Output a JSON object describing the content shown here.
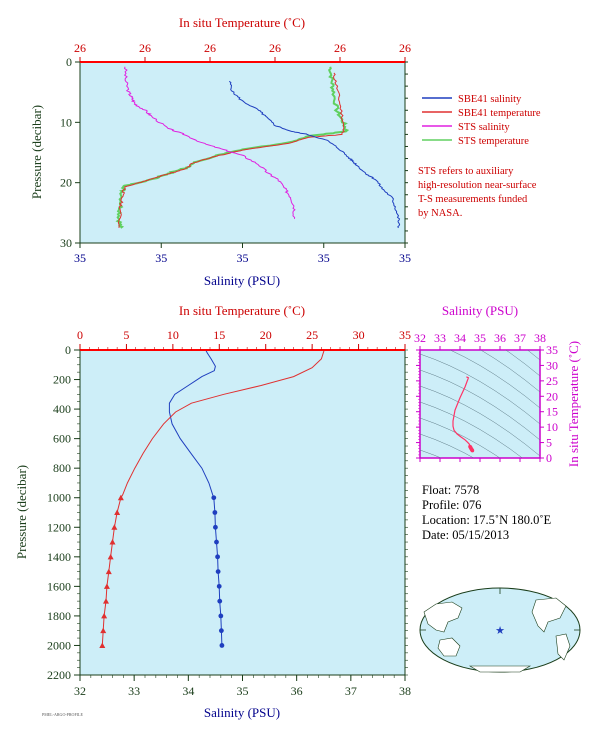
{
  "chart_data": [
    {
      "id": "top",
      "type": "line",
      "title": "In situ Temperature (˚C)",
      "xlabel": "Salinity (PSU)",
      "ylabel": "Pressure (decibar)",
      "x_tick_labels": [
        "35",
        "35",
        "35",
        "35",
        "35"
      ],
      "top_tick_labels": [
        "26",
        "26",
        "26",
        "26",
        "26",
        "26"
      ],
      "y_ticks": [
        0,
        10,
        20,
        30
      ],
      "ylim": [
        0,
        30
      ],
      "legend": {
        "position": "right",
        "entries": [
          {
            "label": "SBE41 salinity",
            "color": "#1f3fbf"
          },
          {
            "label": "SBE41 temperature",
            "color": "#e03030"
          },
          {
            "label": "STS salinity",
            "color": "#e020e0"
          },
          {
            "label": "STS temperature",
            "color": "#60d060"
          }
        ]
      },
      "note": [
        "STS refers to auxiliary",
        "high-resolution near-surface",
        "T-S measurements funded",
        "by NASA."
      ]
    },
    {
      "id": "main",
      "type": "line",
      "title": "In situ Temperature (˚C)",
      "xlabel": "Salinity (PSU)",
      "ylabel": "Pressure (decibar)",
      "xlim": [
        32,
        38
      ],
      "temp_lim": [
        0,
        35
      ],
      "ylim": [
        0,
        2200
      ],
      "x_ticks": [
        32,
        33,
        34,
        35,
        36,
        37,
        38
      ],
      "top_ticks": [
        0,
        5,
        10,
        15,
        20,
        25,
        30,
        35
      ],
      "y_ticks": [
        0,
        200,
        400,
        600,
        800,
        1000,
        1200,
        1400,
        1600,
        1800,
        2000,
        2200
      ],
      "series": [
        {
          "name": "salinity",
          "color": "#1f3fbf",
          "axis": "salinity",
          "points": [
            [
              34.32,
              0
            ],
            [
              34.35,
              20
            ],
            [
              34.42,
              60
            ],
            [
              34.5,
              110
            ],
            [
              34.48,
              140
            ],
            [
              34.25,
              180
            ],
            [
              34.0,
              240
            ],
            [
              33.75,
              300
            ],
            [
              33.65,
              360
            ],
            [
              33.65,
              420
            ],
            [
              33.7,
              500
            ],
            [
              33.85,
              600
            ],
            [
              34.05,
              700
            ],
            [
              34.25,
              800
            ],
            [
              34.38,
              900
            ],
            [
              34.45,
              980
            ],
            [
              34.47,
              1000
            ],
            [
              34.49,
              1100
            ],
            [
              34.5,
              1200
            ],
            [
              34.52,
              1300
            ],
            [
              34.54,
              1400
            ],
            [
              34.55,
              1500
            ],
            [
              34.57,
              1600
            ],
            [
              34.58,
              1700
            ],
            [
              34.6,
              1800
            ],
            [
              34.61,
              1900
            ],
            [
              34.62,
              2000
            ]
          ],
          "markers_from": 1000
        },
        {
          "name": "temperature",
          "color": "#e03030",
          "axis": "temperature",
          "points": [
            [
              26.3,
              0
            ],
            [
              26.0,
              60
            ],
            [
              25.0,
              120
            ],
            [
              23.0,
              180
            ],
            [
              19.5,
              240
            ],
            [
              15.5,
              300
            ],
            [
              12.0,
              360
            ],
            [
              10.3,
              420
            ],
            [
              9.0,
              500
            ],
            [
              7.8,
              600
            ],
            [
              6.8,
              700
            ],
            [
              5.9,
              800
            ],
            [
              5.1,
              900
            ],
            [
              4.6,
              980
            ],
            [
              4.4,
              1000
            ],
            [
              4.0,
              1100
            ],
            [
              3.7,
              1200
            ],
            [
              3.5,
              1300
            ],
            [
              3.3,
              1400
            ],
            [
              3.1,
              1500
            ],
            [
              2.9,
              1600
            ],
            [
              2.8,
              1700
            ],
            [
              2.6,
              1800
            ],
            [
              2.5,
              1900
            ],
            [
              2.4,
              2000
            ]
          ],
          "markers_from": 1000
        }
      ]
    },
    {
      "id": "ts",
      "type": "line",
      "title": "Salinity (PSU)",
      "ylabel": "In situ Temperature (˚C)",
      "xlim": [
        32,
        38
      ],
      "ylim": [
        0,
        35
      ],
      "x_ticks": [
        32,
        33,
        34,
        35,
        36,
        37,
        38
      ],
      "y_ticks": [
        0,
        5,
        10,
        15,
        20,
        25,
        30,
        35
      ],
      "color": "#ff3366"
    }
  ],
  "info": {
    "float": "Float:  7578",
    "profile": "Profile:  076",
    "location": "Location:  17.5˚N  180.0˚E",
    "date": "Date:  05/15/2013"
  },
  "footer": "PMEL-ARGO-PROFILE"
}
